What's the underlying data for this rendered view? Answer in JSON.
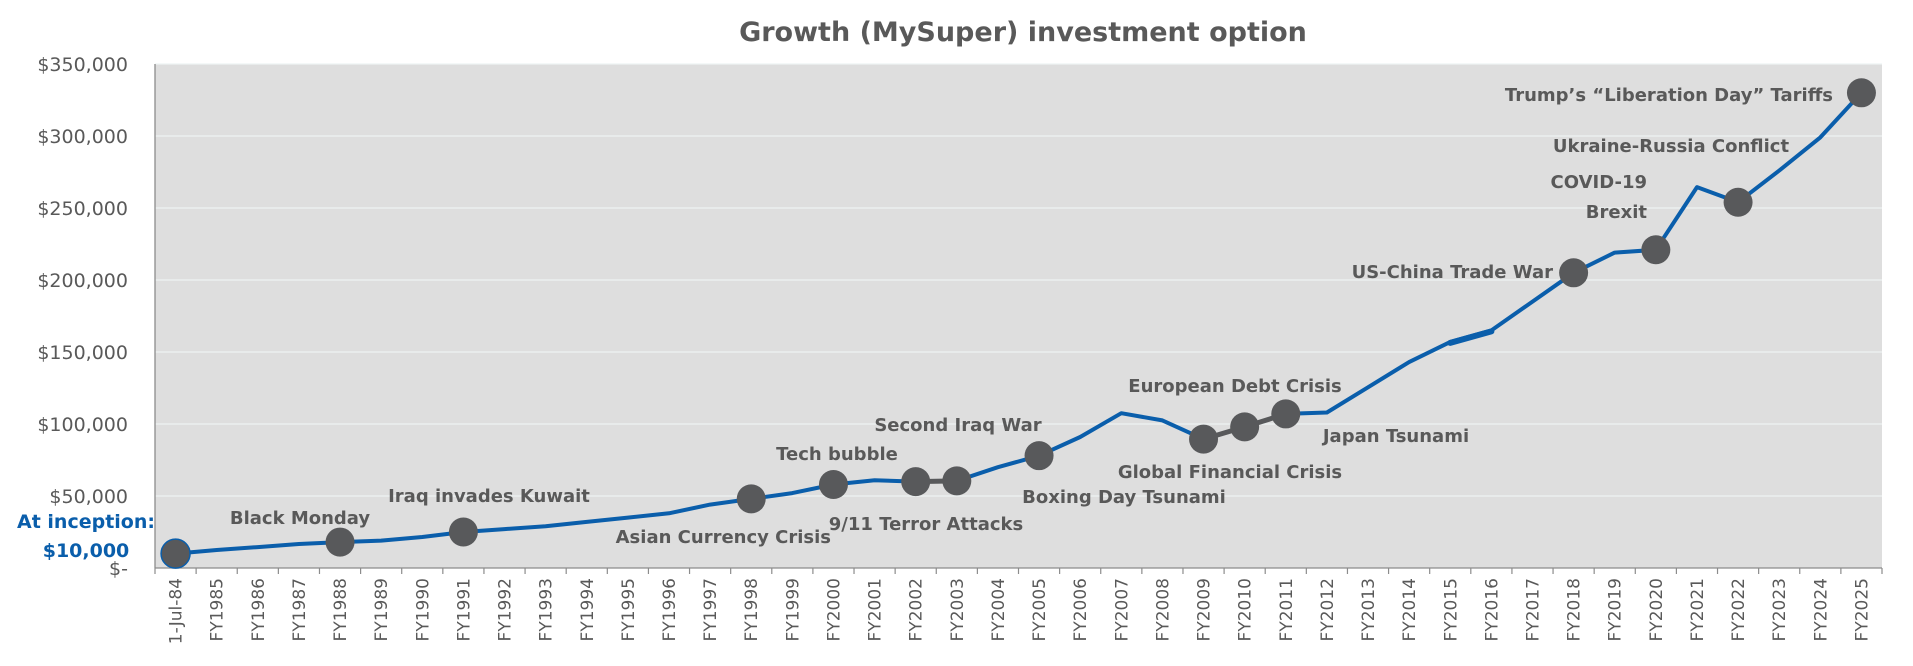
{
  "chart_data": {
    "type": "line",
    "title": "Growth (MySuper) investment option",
    "xlabel": "",
    "ylabel": "",
    "ylim": [
      0,
      350000
    ],
    "yticks": [
      0,
      50000,
      100000,
      150000,
      200000,
      250000,
      300000,
      350000
    ],
    "ytick_labels": [
      "$-",
      "$50,000",
      "$100,000",
      "$150,000",
      "$200,000",
      "$250,000",
      "$300,000",
      "$350,000"
    ],
    "grid": true,
    "legend": "none",
    "colors": {
      "line": "#0a5eab",
      "marker": "#58595b",
      "plot_bg": "#dedede",
      "gridline": "#eef3f3",
      "text": "#595959",
      "inception": "#0a5eab"
    },
    "categories": [
      "1-Jul-84",
      "FY1985",
      "FY1986",
      "FY1987",
      "FY1988",
      "FY1989",
      "FY1990",
      "FY1991",
      "FY1992",
      "FY1993",
      "FY1994",
      "FY1995",
      "FY1996",
      "FY1997",
      "FY1998",
      "FY1999",
      "FY2000",
      "FY2001",
      "FY2002",
      "FY2003",
      "FY2004",
      "FY2005",
      "FY2006",
      "FY2007",
      "FY2008",
      "FY2009",
      "FY2010",
      "FY2011",
      "FY2012",
      "FY2013",
      "FY2014",
      "FY2015",
      "FY2016",
      "FY2017",
      "FY2018",
      "FY2019",
      "FY2020",
      "FY2021",
      "FY2022",
      "FY2023",
      "FY2024",
      "FY2025"
    ],
    "series": [
      {
        "name": "Growth (MySuper)",
        "values": [
          10000,
          12500,
          14500,
          16700,
          18000,
          19000,
          21500,
          25000,
          27000,
          29000,
          32000,
          35000,
          38000,
          44000,
          48000,
          52000,
          58000,
          61000,
          60000,
          60500,
          70000,
          78000,
          91000,
          107500,
          102500,
          89500,
          98000,
          107000,
          108000,
          125500,
          143000,
          157000,
          165000,
          185000,
          205000,
          219000,
          221000,
          264500,
          254000,
          276000,
          299000,
          330000
        ]
      }
    ],
    "annotations": {
      "inception": [
        "At inception:",
        "$10,000"
      ],
      "events": [
        {
          "category": "1-Jul-84",
          "label": ""
        },
        {
          "category": "FY1988",
          "label": "Black Monday"
        },
        {
          "category": "FY1991",
          "label": "Iraq invades Kuwait"
        },
        {
          "category": "FY1998",
          "label": "Asian Currency Crisis"
        },
        {
          "category": "FY2000",
          "label": "Tech bubble"
        },
        {
          "category": "FY2002",
          "label": "9/11 Terror Attacks"
        },
        {
          "category": "FY2003",
          "label": "Second Iraq War"
        },
        {
          "category": "FY2005",
          "label": "Boxing Day Tsunami"
        },
        {
          "category": "FY2009",
          "label": "Global Financial Crisis"
        },
        {
          "category": "FY2010",
          "label": "European Debt Crisis"
        },
        {
          "category": "FY2011",
          "label": "Japan Tsunami"
        },
        {
          "category": "FY2018",
          "label": "US-China Trade War"
        },
        {
          "category": "FY2020",
          "label": "Brexit"
        },
        {
          "category": "FY2020",
          "label": "COVID-19"
        },
        {
          "category": "FY2022",
          "label": "Ukraine-Russia Conflict"
        },
        {
          "category": "FY2025",
          "label": "Trump’s “Liberation Day” Tariffs"
        }
      ]
    }
  }
}
